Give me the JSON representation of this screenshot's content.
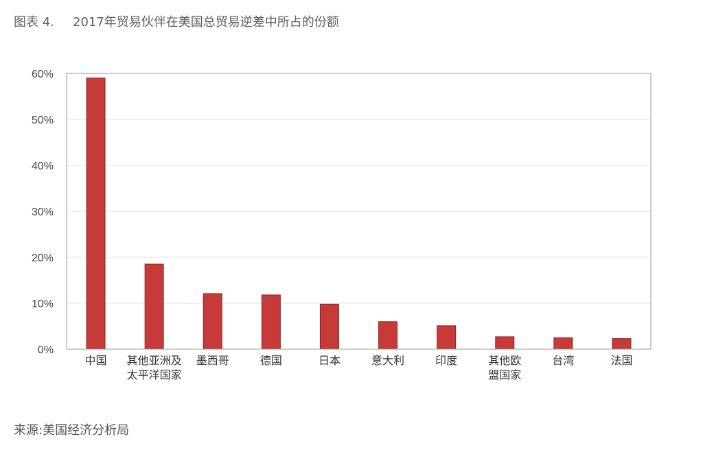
{
  "figure": {
    "number": "图表 4.",
    "title": "2017年贸易伙伴在美国总贸易逆差中所占的份额"
  },
  "source": "来源:美国经济分析局",
  "colors": {
    "bar": "#c63b38",
    "bar_stroke": "#8e2422",
    "grid": "#e3e3e3",
    "frame": "#999999"
  },
  "chart_data": {
    "type": "bar",
    "categories": [
      [
        "中国"
      ],
      [
        "其他亚洲及",
        "太平洋国家"
      ],
      [
        "墨西哥"
      ],
      [
        "德国"
      ],
      [
        "日本"
      ],
      [
        "意大利"
      ],
      [
        "印度"
      ],
      [
        "其他欧",
        "盟国家"
      ],
      [
        "台湾"
      ],
      [
        "法国"
      ]
    ],
    "values": [
      59.0,
      18.5,
      12.1,
      11.8,
      9.8,
      6.0,
      5.1,
      2.7,
      2.5,
      2.3
    ],
    "ylim": [
      0,
      60
    ],
    "yticks": [
      0,
      10,
      20,
      30,
      40,
      50,
      60
    ],
    "ytick_labels": [
      "0%",
      "10%",
      "20%",
      "30%",
      "40%",
      "50%",
      "60%"
    ],
    "grid": true,
    "legend": false
  }
}
